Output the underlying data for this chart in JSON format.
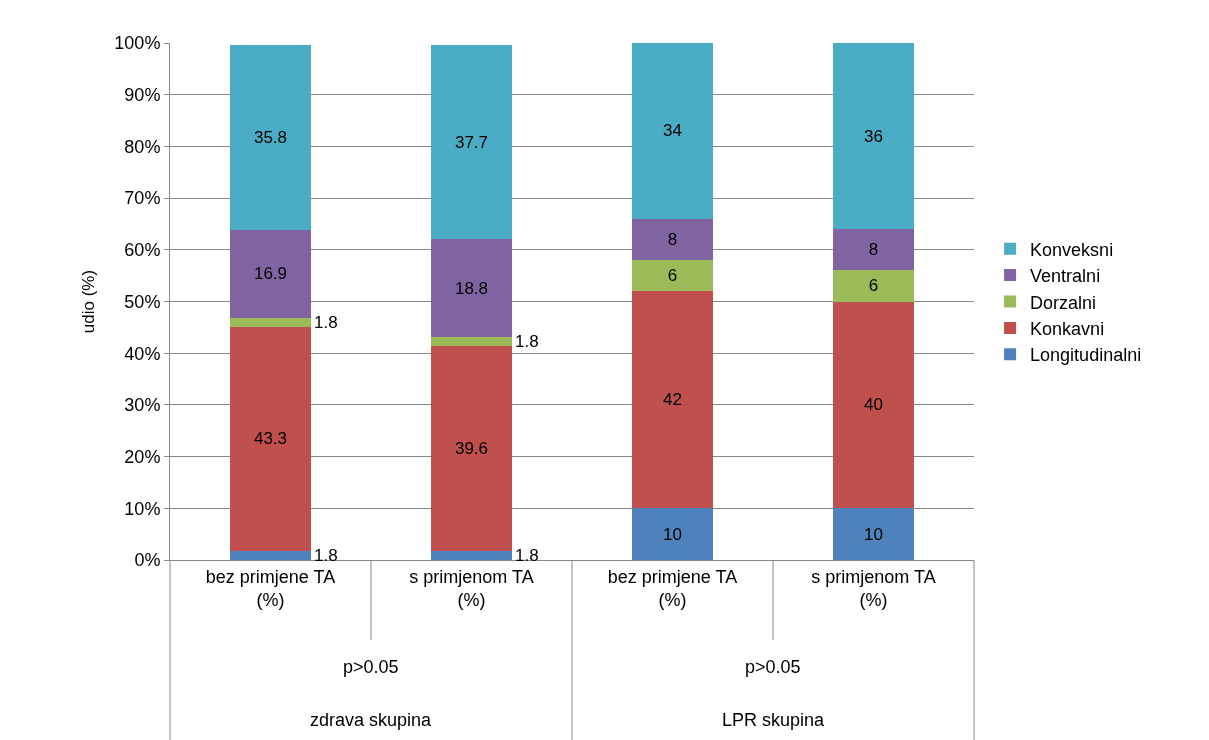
{
  "chart_data": {
    "type": "bar",
    "stacked": true,
    "ylabel": "udio (%)",
    "categories": [
      "bez primjene TA (%)",
      "s primjenom TA (%)",
      "bez primjene TA (%)",
      "s primjenom TA (%)"
    ],
    "series": [
      {
        "name": "Longitudinalni",
        "color": "#4f81bd",
        "values": [
          1.8,
          1.8,
          10,
          10
        ]
      },
      {
        "name": "Konkavni",
        "color": "#c0504d",
        "values": [
          43.3,
          39.6,
          42,
          40
        ]
      },
      {
        "name": "Dorzalni",
        "color": "#9bbb59",
        "values": [
          1.8,
          1.8,
          6,
          6
        ]
      },
      {
        "name": "Ventralni",
        "color": "#8064a2",
        "values": [
          16.9,
          18.8,
          8,
          8
        ]
      },
      {
        "name": "Konveksni",
        "color": "#4bacc6",
        "values": [
          35.8,
          37.7,
          34,
          36
        ]
      }
    ],
    "ylim": [
      0,
      100
    ],
    "yticks": [
      {
        "value": 0,
        "label": "0%"
      },
      {
        "value": 10,
        "label": "10%"
      },
      {
        "value": 20,
        "label": "20%"
      },
      {
        "value": 30,
        "label": "30%"
      },
      {
        "value": 40,
        "label": "40%"
      },
      {
        "value": 50,
        "label": "50%"
      },
      {
        "value": 60,
        "label": "60%"
      },
      {
        "value": 70,
        "label": "70%"
      },
      {
        "value": 80,
        "label": "80%"
      },
      {
        "value": 90,
        "label": "90%"
      },
      {
        "value": 100,
        "label": "100%"
      }
    ],
    "annotations": [
      "p>0.05",
      "zdrava skupina",
      "p>0.05",
      "LPR skupina"
    ],
    "data_labels": true,
    "grid": "y",
    "legend": "right"
  }
}
